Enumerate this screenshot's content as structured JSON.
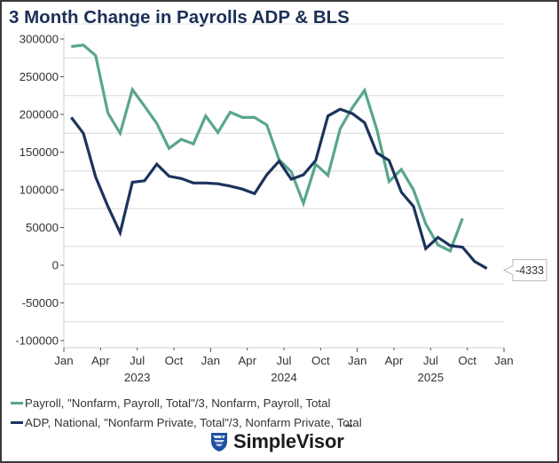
{
  "chart_data": {
    "type": "line",
    "title": "3 Month Change in Payrolls ADP & BLS",
    "xlabel": "",
    "ylabel": "",
    "ylim": [
      -110000,
      310000
    ],
    "yticks": [
      300000,
      250000,
      200000,
      150000,
      100000,
      50000,
      0,
      -50000,
      -100000
    ],
    "ytick_labels": [
      "300000",
      "250000",
      "200000",
      "150000",
      "100000",
      "50000",
      "0",
      "-50000",
      "-100000"
    ],
    "x_start": "2023-01",
    "x_end": "2026-01",
    "xticks": [
      {
        "month_index": 0,
        "label": "Jan"
      },
      {
        "month_index": 3,
        "label": "Apr"
      },
      {
        "month_index": 6,
        "label": "Jul"
      },
      {
        "month_index": 9,
        "label": "Oct"
      },
      {
        "month_index": 12,
        "label": "Jan"
      },
      {
        "month_index": 15,
        "label": "Apr"
      },
      {
        "month_index": 18,
        "label": "Jul"
      },
      {
        "month_index": 21,
        "label": "Oct"
      },
      {
        "month_index": 24,
        "label": "Jan"
      },
      {
        "month_index": 27,
        "label": "Apr"
      },
      {
        "month_index": 30,
        "label": "Jul"
      },
      {
        "month_index": 33,
        "label": "Oct"
      },
      {
        "month_index": 36,
        "label": "Jan"
      }
    ],
    "year_labels": [
      {
        "month_index": 6,
        "label": "2023"
      },
      {
        "month_index": 18,
        "label": "2024"
      },
      {
        "month_index": 30,
        "label": "2025"
      }
    ],
    "grid": true,
    "legend_position": "bottom-left",
    "series": [
      {
        "name": "Payroll, \"Nonfarm, Payroll, Total\"/3, Nonfarm, Payroll, Total",
        "color": "#58a68e",
        "start": "2023-01",
        "values": [
          290000,
          292000,
          278000,
          202000,
          175000,
          233000,
          211000,
          188000,
          155000,
          167000,
          161000,
          198000,
          176000,
          203000,
          196000,
          196000,
          186000,
          140000,
          124000,
          82000,
          134000,
          119000,
          181000,
          209000,
          232000,
          180000,
          111000,
          127000,
          100000,
          55000,
          27000,
          19000,
          62000
        ]
      },
      {
        "name": "ADP, National, \"Nonfarm Private, Total\"/3, Nonfarm Private, Total",
        "color": "#1b335e",
        "start": "2023-01",
        "values": [
          196000,
          175000,
          117000,
          78000,
          43000,
          110000,
          112000,
          134000,
          118000,
          115000,
          109000,
          109000,
          108000,
          105000,
          101000,
          95000,
          120000,
          138000,
          114000,
          120000,
          139000,
          198000,
          207000,
          201000,
          189000,
          149000,
          139000,
          97000,
          78000,
          22000,
          37000,
          26000,
          24000,
          5000,
          -4333
        ]
      }
    ],
    "annotations": [
      {
        "series": 1,
        "label": "-4333",
        "value": -4333
      }
    ]
  },
  "legend": {
    "items": [
      {
        "label": "Payroll, \"Nonfarm, Payroll, Total\"/3, Nonfarm, Payroll, Total",
        "color": "#58a68e"
      },
      {
        "label": "ADP, National, \"Nonfarm Private, Total\"/3, Nonfarm Private, Total",
        "color": "#1b335e"
      }
    ]
  },
  "branding": {
    "name": "SimpleVisor",
    "trademark": "™",
    "logo_icon": "eagle-shield-icon"
  }
}
